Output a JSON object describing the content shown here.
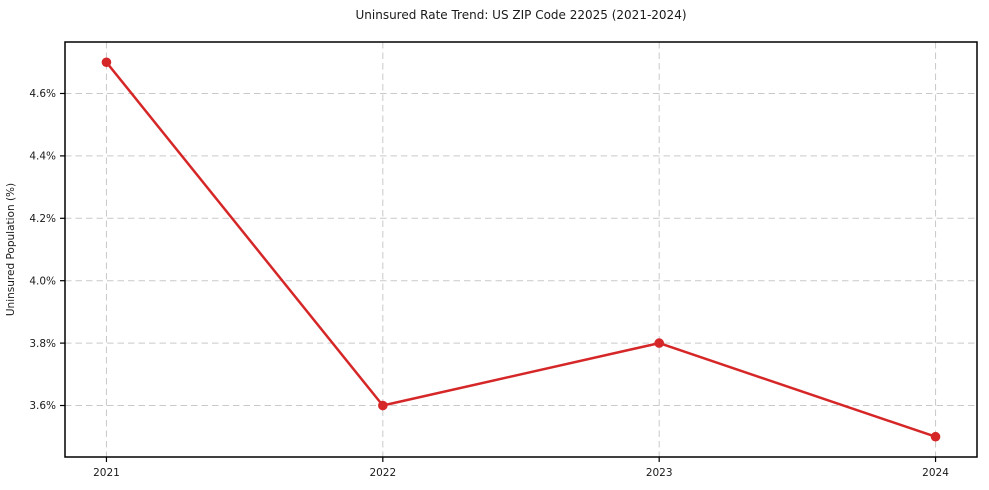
{
  "chart_data": {
    "type": "line",
    "title": "Uninsured Rate Trend: US ZIP Code 22025 (2021-2024)",
    "xlabel": "",
    "ylabel": "Uninsured Population (%)",
    "x": [
      2021,
      2022,
      2023,
      2024
    ],
    "x_tick_labels": [
      "2021",
      "2022",
      "2023",
      "2024"
    ],
    "y_ticks": [
      3.6,
      3.8,
      4.0,
      4.2,
      4.4,
      4.6
    ],
    "y_tick_labels": [
      "3.6%",
      "3.8%",
      "4.0%",
      "4.2%",
      "4.4%",
      "4.6%"
    ],
    "series": [
      {
        "name": "Uninsured Population (%)",
        "values": [
          4.7,
          3.6,
          3.8,
          3.5
        ]
      }
    ],
    "xlim": [
      2020.85,
      2024.15
    ],
    "ylim": [
      3.435,
      4.765
    ],
    "grid": true,
    "grid_style": "dashed",
    "legend_position": "none",
    "marker": "circle",
    "colors": {
      "line": "#d62728",
      "grid": "#c9c9c9",
      "spine": "#000000",
      "text": "#1a1a1a"
    }
  }
}
